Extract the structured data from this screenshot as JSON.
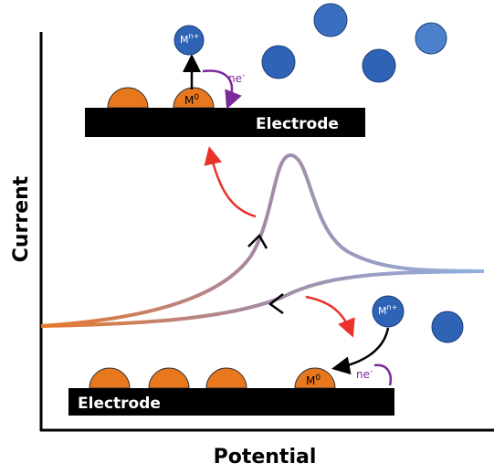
{
  "axes": {
    "x_label": "Potential",
    "y_label": "Current"
  },
  "top_panel": {
    "electrode": "Electrode",
    "ion": {
      "symbol": "M",
      "charge": "n+"
    },
    "deposit": {
      "symbol": "M",
      "state": "0"
    },
    "electrons": {
      "symbol": "ne",
      "charge": "-"
    }
  },
  "bottom_panel": {
    "electrode": "Electrode",
    "ion": {
      "symbol": "M",
      "charge": "n+"
    },
    "deposit": {
      "symbol": "M",
      "state": "0"
    },
    "electrons": {
      "symbol": "ne",
      "charge": "-"
    }
  }
}
